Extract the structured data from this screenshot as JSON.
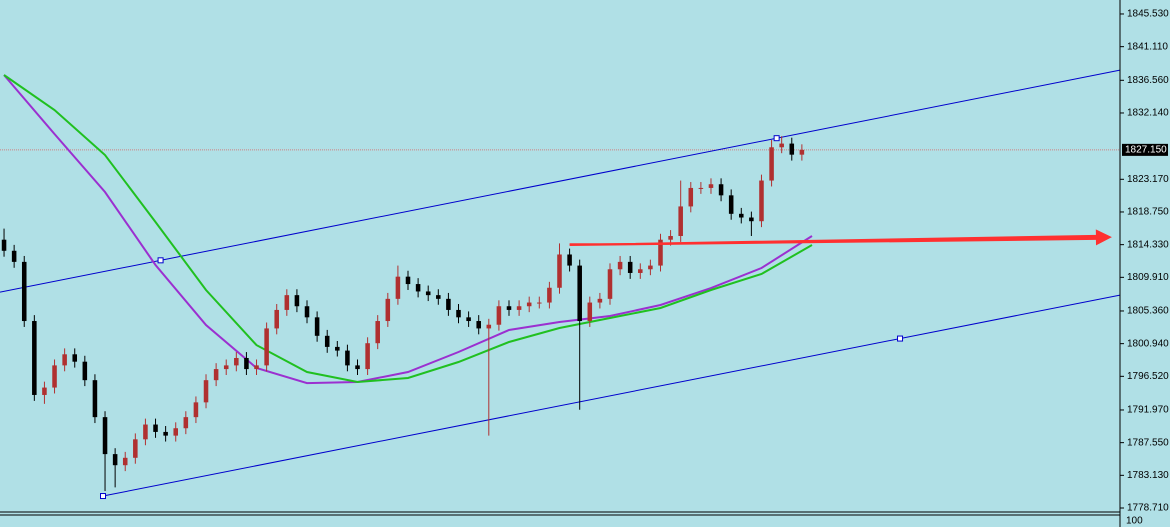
{
  "chart_data": {
    "type": "candlestick",
    "x": [
      0,
      1,
      2,
      3,
      4,
      5,
      6,
      7,
      8,
      9,
      10,
      11,
      12,
      13,
      14,
      15,
      16,
      17,
      18,
      19,
      20,
      21,
      22,
      23,
      24,
      25,
      26,
      27,
      28,
      29,
      30,
      31,
      32,
      33,
      34,
      35,
      36,
      37,
      38,
      39,
      40,
      41,
      42,
      43,
      44,
      45,
      46,
      47,
      48,
      49,
      50,
      51,
      52,
      53,
      54,
      55,
      56,
      57,
      58,
      59,
      60,
      61,
      62,
      63,
      64,
      65,
      66,
      67,
      68,
      69,
      70,
      71,
      72,
      73,
      74,
      75,
      76,
      77,
      78,
      79
    ],
    "open": [
      1815,
      1813.5,
      1812,
      1804,
      1794,
      1795,
      1798,
      1799.5,
      1798.5,
      1796,
      1791,
      1786,
      1784.5,
      1785.5,
      1788,
      1790,
      1789,
      1788.5,
      1789.5,
      1791,
      1793,
      1796,
      1797.5,
      1798,
      1799,
      1797.5,
      1798,
      1803,
      1805.5,
      1807.5,
      1806,
      1804.5,
      1802,
      1800.5,
      1800,
      1798,
      1797.5,
      1801,
      1804,
      1807,
      1810,
      1809,
      1808,
      1807.5,
      1807,
      1805.5,
      1804.5,
      1804,
      1803,
      1803.5,
      1806,
      1805.5,
      1806,
      1806.5,
      1806.5,
      1808.5,
      1813,
      1811.5,
      1804,
      1806.5,
      1807,
      1811,
      1812,
      1810.5,
      1811,
      1811.5,
      1815,
      1815.5,
      1819.5,
      1822,
      1822,
      1822.5,
      1821,
      1818.5,
      1818,
      1817.5,
      1823,
      1827.5,
      1828,
      1826.5
    ],
    "high": [
      1816.5,
      1814.3,
      1812.8,
      1804.8,
      1795.8,
      1798.8,
      1800.3,
      1800.3,
      1799.3,
      1796.8,
      1791.8,
      1786.8,
      1786.3,
      1788.8,
      1790.8,
      1790.8,
      1789.8,
      1790.3,
      1791.8,
      1793.8,
      1796.8,
      1798.3,
      1798.8,
      1799.8,
      1799.8,
      1798.8,
      1803.8,
      1806.3,
      1808.3,
      1808.3,
      1806.8,
      1805.3,
      1802.8,
      1801.3,
      1800.8,
      1798.8,
      1801.8,
      1804.8,
      1807.8,
      1811.5,
      1810.8,
      1809.8,
      1808.8,
      1808.3,
      1807.8,
      1806.3,
      1805.3,
      1804.8,
      1804.3,
      1806.8,
      1806.8,
      1806.8,
      1807.3,
      1807.3,
      1809.3,
      1814.5,
      1813.8,
      1812.3,
      1807.3,
      1807.8,
      1811.8,
      1812.8,
      1812.8,
      1811.8,
      1812.3,
      1815.8,
      1816.3,
      1823,
      1822.8,
      1822.8,
      1823.3,
      1823.3,
      1821.8,
      1819.3,
      1818.8,
      1823.8,
      1828.5,
      1829,
      1828.8,
      1827.9
    ],
    "low": [
      1812.7,
      1811.2,
      1803.2,
      1793.2,
      1792.8,
      1794.2,
      1797.2,
      1797.7,
      1795.2,
      1790.2,
      1781,
      1781.5,
      1783.7,
      1784.7,
      1787.2,
      1788.2,
      1787.7,
      1787.7,
      1788.7,
      1790.2,
      1792.2,
      1795.2,
      1796.7,
      1797.2,
      1796.7,
      1796.7,
      1797.2,
      1802.2,
      1804.7,
      1805.2,
      1803.7,
      1801.2,
      1799.7,
      1799.2,
      1797.2,
      1796.7,
      1796.7,
      1800.2,
      1803.2,
      1806.2,
      1808.2,
      1807.2,
      1806.7,
      1806.2,
      1804.7,
      1803.7,
      1803.2,
      1802.2,
      1788.5,
      1802.7,
      1804.7,
      1804.7,
      1805.2,
      1805.7,
      1805.7,
      1807.7,
      1810.7,
      1792,
      1803.2,
      1805.7,
      1806.2,
      1810.2,
      1809.7,
      1809.7,
      1810.2,
      1810.7,
      1814.2,
      1814.7,
      1818.7,
      1821.2,
      1821.2,
      1820.2,
      1817.7,
      1817.2,
      1815.5,
      1816.7,
      1822.2,
      1826.7,
      1825.7,
      1825.7
    ],
    "close": [
      1813.5,
      1812,
      1804,
      1794,
      1795,
      1798,
      1799.5,
      1798.5,
      1796,
      1791,
      1786,
      1784.5,
      1785.5,
      1788,
      1790,
      1789,
      1788.5,
      1789.5,
      1791,
      1793,
      1796,
      1797.5,
      1798,
      1799,
      1797.5,
      1798,
      1803,
      1805.5,
      1807.5,
      1806,
      1804.5,
      1802,
      1800.5,
      1800,
      1798,
      1797.5,
      1801,
      1804,
      1807,
      1810,
      1809,
      1808,
      1807.5,
      1807,
      1805.5,
      1804.5,
      1804,
      1803,
      1803.5,
      1806,
      1805.5,
      1806,
      1806.5,
      1806.5,
      1808.5,
      1813,
      1811.5,
      1804,
      1806.5,
      1807,
      1811,
      1812,
      1810.5,
      1811,
      1811.5,
      1815,
      1815.5,
      1819.5,
      1822,
      1822,
      1822.5,
      1821,
      1818.5,
      1818,
      1817.5,
      1823,
      1827.5,
      1828,
      1826.5,
      1827.15
    ],
    "up_color": "#b03030",
    "down_color": "#000000",
    "series": [
      {
        "color": "#9b30d0",
        "x": [
          0,
          5,
          10,
          15,
          20,
          25,
          30,
          35,
          40,
          45,
          50,
          55,
          60,
          65,
          70,
          75,
          80
        ],
        "values": [
          1837.28,
          1829.29,
          1821.45,
          1811.58,
          1803.46,
          1797.64,
          1795.61,
          1795.75,
          1797.1,
          1799.81,
          1802.78,
          1803.87,
          1804.68,
          1806.17,
          1808.46,
          1811.17,
          1815.5
        ]
      },
      {
        "color": "#20c020",
        "x": [
          0,
          5,
          10,
          15,
          20,
          25,
          30,
          35,
          40,
          45,
          50,
          55,
          60,
          65,
          70,
          75,
          80
        ],
        "values": [
          1837.28,
          1832.54,
          1826.45,
          1817.39,
          1808.19,
          1800.75,
          1797.1,
          1795.75,
          1796.29,
          1798.46,
          1801.16,
          1803.05,
          1804.41,
          1805.76,
          1808.19,
          1810.36,
          1814.28
        ]
      }
    ],
    "trendlines": [
      {
        "color": "#0000cc",
        "x": [
          15.5,
          76.5
        ],
        "values": [
          1812.21,
          1828.73
        ]
      },
      {
        "color": "#0000cc",
        "x": [
          9.8,
          88.72
        ],
        "values": [
          1780.33,
          1801.63
        ]
      }
    ],
    "arrow": {
      "color": "#ff3030",
      "x": [
        56,
        109.7
      ],
      "values": [
        1814.28,
        1815.34
      ]
    },
    "level": {
      "color": "#ff3030",
      "x": [
        56,
        65.9
      ],
      "values": [
        1814.42,
        1814.42
      ]
    },
    "current_price": {
      "value": 1827.15,
      "label": "1827.150"
    },
    "xlim": [
      -0.4,
      110.5
    ],
    "ylim": [
      1778.17,
      1847.42
    ],
    "yticks": [
      {
        "value": 1845.53,
        "label": "1845.530"
      },
      {
        "value": 1841.11,
        "label": "1841.110"
      },
      {
        "value": 1836.56,
        "label": "1836.560"
      },
      {
        "value": 1832.14,
        "label": "1832.140"
      },
      {
        "value": 1823.17,
        "label": "1823.170"
      },
      {
        "value": 1818.75,
        "label": "1818.750"
      },
      {
        "value": 1814.33,
        "label": "1814.330"
      },
      {
        "value": 1809.91,
        "label": "1809.910"
      },
      {
        "value": 1805.36,
        "label": "1805.360"
      },
      {
        "value": 1800.94,
        "label": "1800.940"
      },
      {
        "value": 1796.52,
        "label": "1796.520"
      },
      {
        "value": 1791.97,
        "label": "1791.970"
      },
      {
        "value": 1787.55,
        "label": "1787.550"
      },
      {
        "value": 1783.13,
        "label": "1783.130"
      },
      {
        "value": 1778.71,
        "label": "1778.710"
      }
    ],
    "indicator_label": "100"
  }
}
